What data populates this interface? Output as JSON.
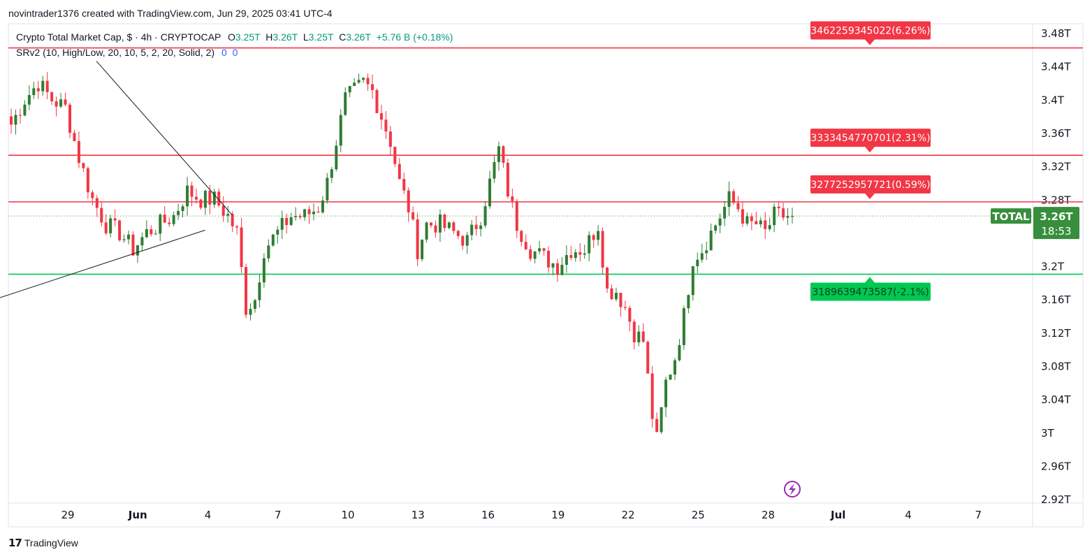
{
  "header": {
    "caption": "novintrader1376 created with TradingView.com, Jun 29, 2025 03:41 UTC-4"
  },
  "legend": {
    "symbol": "Crypto Total Market Cap, $ · 4h · CRYPTOCAP",
    "open_label": "O",
    "open": "3.25T",
    "high_label": "H",
    "high": "3.26T",
    "low_label": "L",
    "low": "3.25T",
    "close_label": "C",
    "close": "3.26T",
    "change": "+5.76 B (+0.18%)",
    "indicator": "SRv2 (10, High/Low, 20, 10, 5, 2, 20, Solid, 2)",
    "indicator_v1": "0",
    "indicator_v2": "0"
  },
  "footer": {
    "brand": "TradingView"
  },
  "colors": {
    "up": "#2e7d32",
    "down": "#f23645",
    "resistance": "#f23645",
    "support": "#00c853",
    "price_tag": "#388e3c",
    "watermark": "#9c27b0"
  },
  "chart_data": {
    "type": "candlestick",
    "symbol_tag": "TOTAL",
    "current_price_label": "3.26T",
    "countdown": "18:53",
    "current_price": 3.26,
    "y_unit": "T",
    "ylim": [
      2.915,
      3.491
    ],
    "y_ticks": [
      {
        "v": 3.48,
        "label": "3.48T"
      },
      {
        "v": 3.44,
        "label": "3.44T"
      },
      {
        "v": 3.4,
        "label": "3.4T"
      },
      {
        "v": 3.36,
        "label": "3.36T"
      },
      {
        "v": 3.32,
        "label": "3.32T"
      },
      {
        "v": 3.28,
        "label": "3.28T"
      },
      {
        "v": 3.2,
        "label": "3.2T"
      },
      {
        "v": 3.16,
        "label": "3.16T"
      },
      {
        "v": 3.12,
        "label": "3.12T"
      },
      {
        "v": 3.08,
        "label": "3.08T"
      },
      {
        "v": 3.04,
        "label": "3.04T"
      },
      {
        "v": 3.0,
        "label": "3T"
      },
      {
        "v": 2.96,
        "label": "2.96T"
      },
      {
        "v": 2.92,
        "label": "2.92T"
      }
    ],
    "x_range_days": [
      26.0,
      38.0
    ],
    "x_ticks": [
      {
        "d": 27,
        "label": "29"
      },
      {
        "d": 28,
        "label": "Jun"
      },
      {
        "d": 29,
        "label": "4"
      },
      {
        "d": 30,
        "label": "7"
      },
      {
        "d": 31,
        "label": "10"
      },
      {
        "d": 32,
        "label": "13"
      },
      {
        "d": 33,
        "label": "16"
      },
      {
        "d": 34,
        "label": "19"
      },
      {
        "d": 35,
        "label": "22"
      },
      {
        "d": 36,
        "label": "25"
      },
      {
        "d": 37,
        "label": "28"
      },
      {
        "d": 38,
        "label": "Jul"
      },
      {
        "d": 39,
        "label": "4"
      },
      {
        "d": 40,
        "label": "7"
      }
    ],
    "levels": [
      {
        "value": 3.462,
        "label": "3462259345022(6.26%)",
        "kind": "resistance"
      },
      {
        "value": 3.333,
        "label": "3333454770701(2.31%)",
        "kind": "resistance"
      },
      {
        "value": 3.277,
        "label": "3277252957721(0.59%)",
        "kind": "resistance"
      },
      {
        "value": 3.19,
        "label": "3189639473587(-2.1%)",
        "kind": "support"
      }
    ],
    "trendlines": [
      {
        "from": {
          "d": 27.41,
          "v": 3.446
        },
        "to": {
          "d": 29.35,
          "v": 3.261
        }
      },
      {
        "from": {
          "d": 23.55,
          "v": 3.093
        },
        "to": {
          "d": 28.96,
          "v": 3.243
        }
      }
    ],
    "waypoints": [
      [
        0,
        3.37
      ],
      [
        3,
        3.4
      ],
      [
        6,
        3.42
      ],
      [
        9,
        3.4
      ],
      [
        12,
        3.39
      ],
      [
        15,
        3.33
      ],
      [
        18,
        3.28
      ],
      [
        21,
        3.25
      ],
      [
        24,
        3.24
      ],
      [
        27,
        3.22
      ],
      [
        30,
        3.24
      ],
      [
        33,
        3.25
      ],
      [
        36,
        3.26
      ],
      [
        39,
        3.29
      ],
      [
        42,
        3.28
      ],
      [
        45,
        3.28
      ],
      [
        48,
        3.26
      ],
      [
        50,
        3.24
      ],
      [
        52,
        3.15
      ],
      [
        54,
        3.16
      ],
      [
        56,
        3.22
      ],
      [
        59,
        3.24
      ],
      [
        62,
        3.26
      ],
      [
        65,
        3.26
      ],
      [
        68,
        3.27
      ],
      [
        70,
        3.3
      ],
      [
        72,
        3.35
      ],
      [
        74,
        3.4
      ],
      [
        76,
        3.41
      ],
      [
        78,
        3.42
      ],
      [
        80,
        3.41
      ],
      [
        82,
        3.38
      ],
      [
        84,
        3.35
      ],
      [
        86,
        3.3
      ],
      [
        88,
        3.27
      ],
      [
        90,
        3.22
      ],
      [
        92,
        3.25
      ],
      [
        95,
        3.25
      ],
      [
        98,
        3.24
      ],
      [
        101,
        3.23
      ],
      [
        104,
        3.26
      ],
      [
        106,
        3.3
      ],
      [
        108,
        3.34
      ],
      [
        110,
        3.29
      ],
      [
        112,
        3.25
      ],
      [
        115,
        3.22
      ],
      [
        118,
        3.21
      ],
      [
        121,
        3.2
      ],
      [
        124,
        3.22
      ],
      [
        127,
        3.22
      ],
      [
        130,
        3.25
      ],
      [
        132,
        3.17
      ],
      [
        134,
        3.17
      ],
      [
        136,
        3.15
      ],
      [
        138,
        3.12
      ],
      [
        140,
        3.11
      ],
      [
        142,
        3.02
      ],
      [
        143,
        2.99
      ],
      [
        145,
        3.06
      ],
      [
        147,
        3.09
      ],
      [
        149,
        3.14
      ],
      [
        151,
        3.21
      ],
      [
        153,
        3.22
      ],
      [
        155,
        3.24
      ],
      [
        157,
        3.26
      ],
      [
        159,
        3.28
      ],
      [
        161,
        3.27
      ],
      [
        163,
        3.25
      ],
      [
        165,
        3.25
      ],
      [
        167,
        3.24
      ],
      [
        169,
        3.26
      ],
      [
        171,
        3.26
      ],
      [
        173,
        3.26
      ]
    ]
  }
}
